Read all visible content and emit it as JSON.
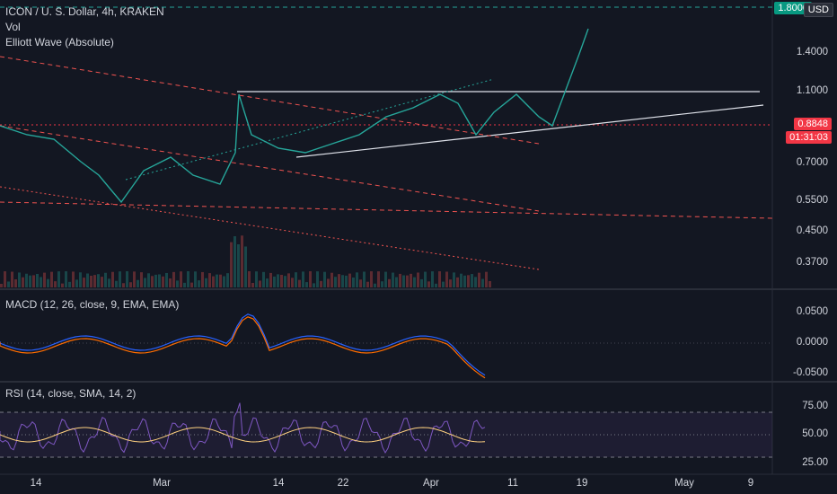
{
  "header": {
    "title": "ICON / U. S. Dollar, 4h, KRAKEN",
    "indicators": [
      "Vol",
      "Elliott Wave (Absolute)"
    ]
  },
  "currency_badge": "USD",
  "top_price_tag": "1.8000",
  "price_axis": [
    "1.4000",
    "1.1000",
    "0.7000",
    "0.5500",
    "0.4500",
    "0.3700"
  ],
  "last_price": {
    "value": "0.8848",
    "countdown": "01:31:03",
    "color": "#f23645"
  },
  "macd": {
    "title": "MACD (12, 26, close, 9, EMA, EMA)",
    "axis": [
      "0.0500",
      "0.0000",
      "-0.0500"
    ]
  },
  "rsi": {
    "title": "RSI (14, close, SMA, 14, 2)",
    "axis": [
      "75.00",
      "50.00",
      "25.00"
    ]
  },
  "time_axis": [
    "14",
    "Mar",
    "14",
    "22",
    "Apr",
    "11",
    "19",
    "May",
    "9"
  ],
  "colors": {
    "bg": "#131722",
    "up": "#26a69a",
    "down": "#ef5350",
    "macd": "#2962ff",
    "signal": "#ff6d00",
    "rsi": "#7e57c2",
    "rsi_ma": "#ffd180",
    "accent_green": "#089981"
  }
}
